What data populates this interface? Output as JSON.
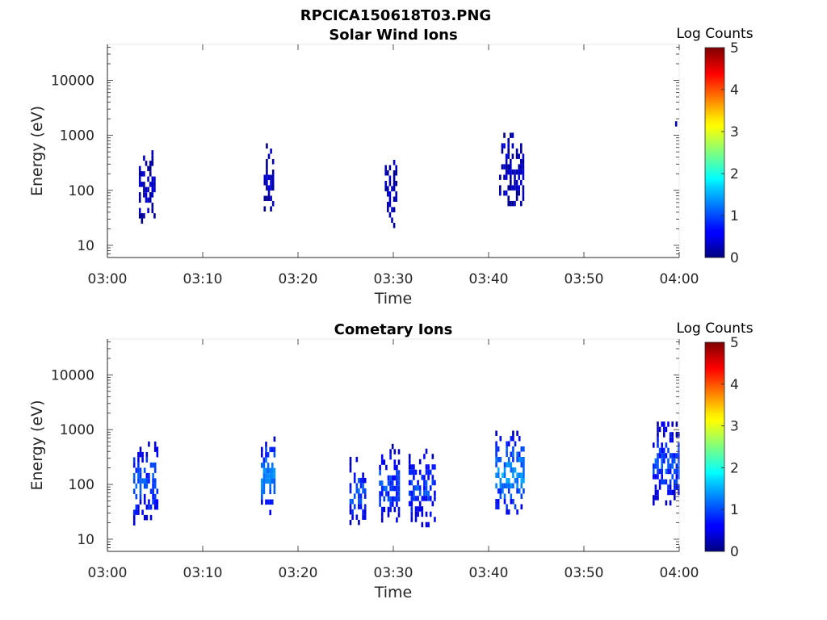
{
  "figure": {
    "title_line1": "RPCICA150618T03.PNG"
  },
  "chart_data": [
    {
      "type": "heatmap",
      "title": "Solar Wind Ions",
      "xlabel": "Time",
      "ylabel": "Energy (eV)",
      "x_ticks": [
        "03:00",
        "03:10",
        "03:20",
        "03:30",
        "03:40",
        "03:50",
        "04:00"
      ],
      "xlim_minutes": [
        0,
        60
      ],
      "y_scale": "log",
      "ylim": [
        6,
        45000
      ],
      "y_ticks": [
        "10",
        "100",
        "1000",
        "10000"
      ],
      "colorbar": {
        "label": "Log Counts",
        "range": [
          0,
          5
        ],
        "ticks": [
          "0",
          "1",
          "2",
          "3",
          "4",
          "5"
        ],
        "colormap": "jet"
      },
      "bursts": [
        {
          "t": 4.2,
          "e": 120,
          "width_min": 1.8,
          "e_span_decades": 1.3,
          "level": 0.2
        },
        {
          "t": 17.0,
          "e": 180,
          "width_min": 1.2,
          "e_span_decades": 1.2,
          "level": 0.2
        },
        {
          "t": 29.8,
          "e": 90,
          "width_min": 1.4,
          "e_span_decades": 1.2,
          "level": 0.2
        },
        {
          "t": 42.4,
          "e": 250,
          "width_min": 2.6,
          "e_span_decades": 1.3,
          "level": 0.25
        },
        {
          "t": 59.6,
          "e": 1700,
          "width_min": 0.5,
          "e_span_decades": 0.05,
          "level": 0.1
        }
      ]
    },
    {
      "type": "heatmap",
      "title": "Cometary Ions",
      "xlabel": "Time",
      "ylabel": "Energy (eV)",
      "x_ticks": [
        "03:00",
        "03:10",
        "03:20",
        "03:30",
        "03:40",
        "03:50",
        "04:00"
      ],
      "xlim_minutes": [
        0,
        60
      ],
      "y_scale": "log",
      "ylim": [
        6,
        45000
      ],
      "y_ticks": [
        "10",
        "100",
        "1000",
        "10000"
      ],
      "colorbar": {
        "label": "Log Counts",
        "range": [
          0,
          5
        ],
        "ticks": [
          "0",
          "1",
          "2",
          "3",
          "4",
          "5"
        ],
        "colormap": "jet"
      },
      "bursts": [
        {
          "t": 4.0,
          "e": 120,
          "width_min": 2.6,
          "e_span_decades": 1.6,
          "level": 0.9
        },
        {
          "t": 16.9,
          "e": 150,
          "width_min": 1.6,
          "e_span_decades": 1.4,
          "level": 1.2
        },
        {
          "t": 26.3,
          "e": 80,
          "width_min": 1.8,
          "e_span_decades": 1.2,
          "level": 0.9
        },
        {
          "t": 29.6,
          "e": 110,
          "width_min": 2.2,
          "e_span_decades": 1.4,
          "level": 0.9
        },
        {
          "t": 33.0,
          "e": 90,
          "width_min": 2.8,
          "e_span_decades": 1.4,
          "level": 0.8
        },
        {
          "t": 42.2,
          "e": 170,
          "width_min": 3.0,
          "e_span_decades": 1.5,
          "level": 1.3
        },
        {
          "t": 58.6,
          "e": 250,
          "width_min": 2.8,
          "e_span_decades": 1.5,
          "level": 0.9
        }
      ]
    }
  ]
}
